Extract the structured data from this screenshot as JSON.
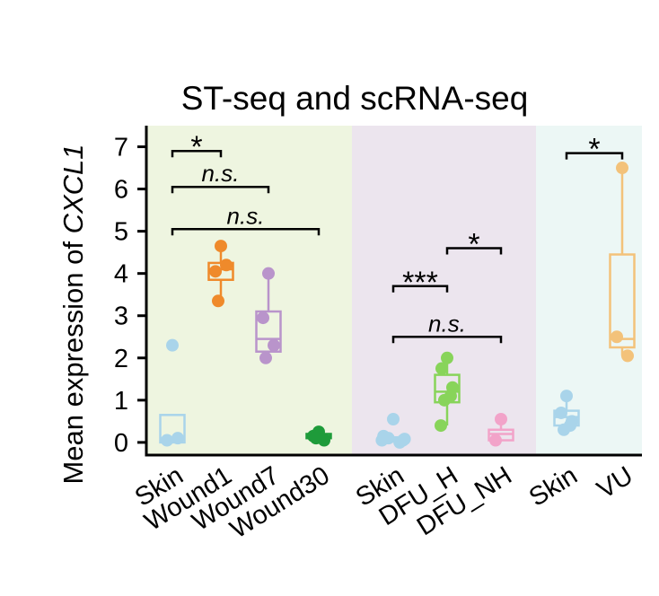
{
  "chart_data": {
    "type": "box",
    "title": "ST-seq and scRNA-seq",
    "ylabel_prefix": "Mean expression of ",
    "ylabel_gene": "CXCL1",
    "ylim": [
      -0.3,
      7.5
    ],
    "yticks": [
      0,
      1,
      2,
      3,
      4,
      5,
      6,
      7
    ],
    "grid": false,
    "panels": [
      {
        "background": "#eef5e0",
        "from": 0,
        "to": 3
      },
      {
        "background": "#ece5ee",
        "from": 4,
        "to": 6
      },
      {
        "background": "#ecf7f5",
        "from": 7,
        "to": 8
      }
    ],
    "groups": [
      {
        "category": "Skin",
        "color": "#a9d4ea",
        "points": [
          2.3,
          0.05,
          0.1
        ],
        "box": {
          "q1": 0.0,
          "median": 0.1,
          "q3": 0.65,
          "whisker_low": 0.0,
          "whisker_high": 0.65
        }
      },
      {
        "category": "Wound1",
        "color": "#ef8a2b",
        "points": [
          4.65,
          4.05,
          4.2,
          3.35
        ],
        "box": {
          "q1": 3.85,
          "median": 4.1,
          "q3": 4.25,
          "whisker_low": 3.35,
          "whisker_high": 4.65
        }
      },
      {
        "category": "Wound7",
        "color": "#b994cb",
        "points": [
          4.0,
          2.95,
          2.3,
          2.0
        ],
        "box": {
          "q1": 2.15,
          "median": 2.45,
          "q3": 3.1,
          "whisker_low": 2.0,
          "whisker_high": 4.0
        }
      },
      {
        "category": "Wound30",
        "color": "#1e9b3a",
        "points": [
          0.25,
          0.15,
          0.05,
          0.1
        ],
        "box": {
          "q1": 0.1,
          "median": 0.15,
          "q3": 0.2,
          "whisker_low": 0.05,
          "whisker_high": 0.25
        }
      },
      {
        "category": "Skin",
        "color": "#a9d4ea",
        "points": [
          0.55,
          0.15,
          0.05,
          0.1,
          0.0,
          0.05,
          0.08
        ],
        "box": {
          "q1": 0.02,
          "median": 0.06,
          "q3": 0.12,
          "whisker_low": 0.0,
          "whisker_high": 0.15
        }
      },
      {
        "category": "DFU_H",
        "color": "#88d45a",
        "points": [
          2.0,
          1.75,
          1.3,
          1.0,
          1.1,
          0.4
        ],
        "box": {
          "q1": 0.95,
          "median": 1.2,
          "q3": 1.6,
          "whisker_low": 0.4,
          "whisker_high": 2.0
        }
      },
      {
        "category": "DFU_NH",
        "color": "#f2a3c9",
        "points": [
          0.55,
          0.05
        ],
        "box": {
          "q1": 0.05,
          "median": 0.2,
          "q3": 0.3,
          "whisker_low": 0.05,
          "whisker_high": 0.55
        }
      },
      {
        "category": "Skin",
        "color": "#a9d4ea",
        "points": [
          1.1,
          0.7,
          0.5,
          0.3,
          0.4
        ],
        "box": {
          "q1": 0.4,
          "median": 0.6,
          "q3": 0.75,
          "whisker_low": 0.3,
          "whisker_high": 1.1
        }
      },
      {
        "category": "VU",
        "color": "#f3c27a",
        "points": [
          6.5,
          2.5,
          2.05
        ],
        "box": {
          "q1": 2.25,
          "median": 2.45,
          "q3": 4.45,
          "whisker_low": 2.05,
          "whisker_high": 6.5
        }
      }
    ],
    "significance": [
      {
        "from": 0,
        "to": 1,
        "y": 6.9,
        "label": "*",
        "italic": false
      },
      {
        "from": 0,
        "to": 2,
        "y": 6.05,
        "label": "n.s.",
        "italic": true
      },
      {
        "from": 0,
        "to": 3,
        "y": 5.05,
        "label": "n.s.",
        "italic": true
      },
      {
        "from": 5,
        "to": 6,
        "y": 4.6,
        "label": "*",
        "italic": false
      },
      {
        "from": 4,
        "to": 5,
        "y": 3.7,
        "label": "***",
        "italic": false
      },
      {
        "from": 4,
        "to": 6,
        "y": 2.5,
        "label": "n.s.",
        "italic": true
      },
      {
        "from": 7,
        "to": 8,
        "y": 6.85,
        "label": "*",
        "italic": false
      }
    ]
  }
}
